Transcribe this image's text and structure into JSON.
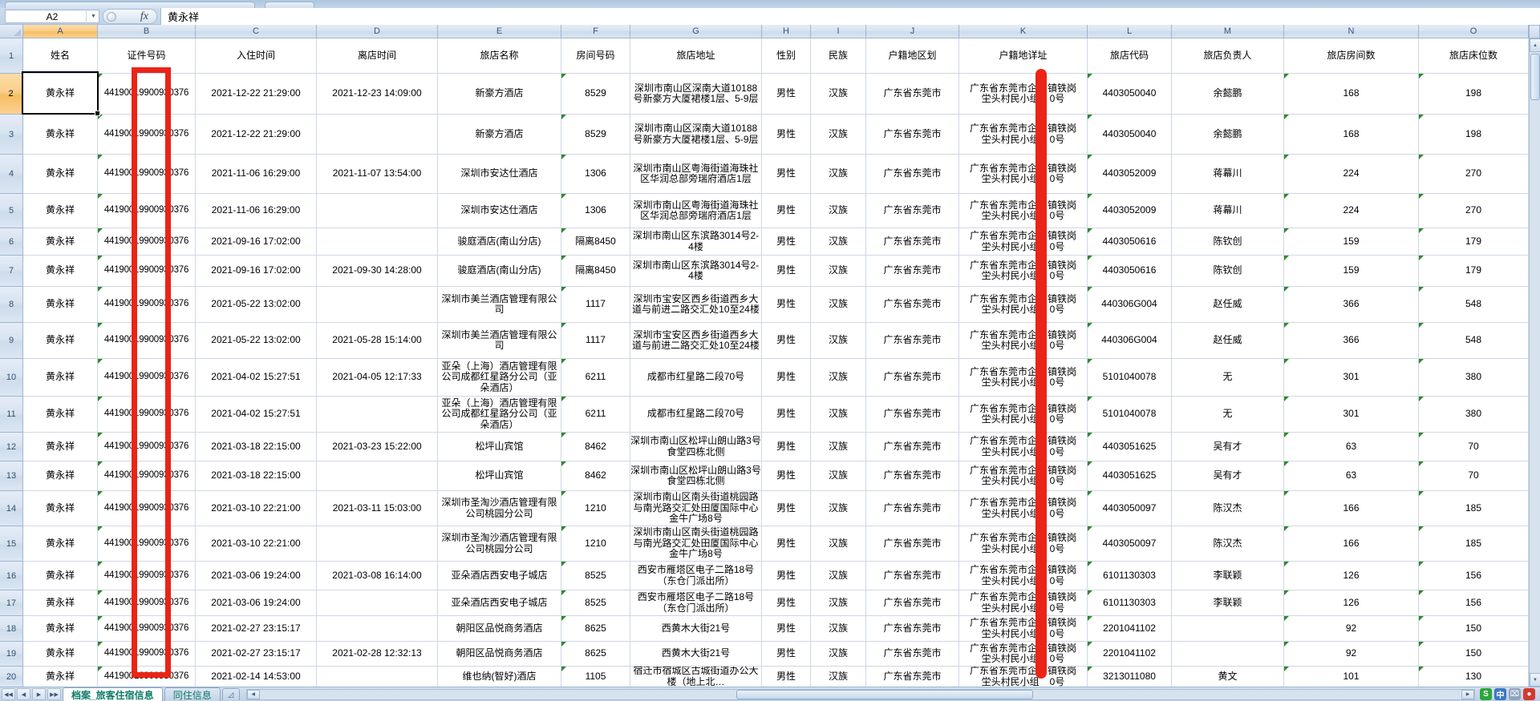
{
  "formula_bar": {
    "cell_ref": "A2",
    "fx_label": "fx",
    "value": "黄永祥"
  },
  "columns": [
    {
      "letter": "A",
      "header": "姓名"
    },
    {
      "letter": "B",
      "header": "证件号码"
    },
    {
      "letter": "C",
      "header": "入住时间"
    },
    {
      "letter": "D",
      "header": "离店时间"
    },
    {
      "letter": "E",
      "header": "旅店名称"
    },
    {
      "letter": "F",
      "header": "房间号码"
    },
    {
      "letter": "G",
      "header": "旅店地址"
    },
    {
      "letter": "H",
      "header": "性别"
    },
    {
      "letter": "I",
      "header": "民族"
    },
    {
      "letter": "J",
      "header": "户籍地区划"
    },
    {
      "letter": "K",
      "header": "户籍地详址"
    },
    {
      "letter": "L",
      "header": "旅店代码"
    },
    {
      "letter": "M",
      "header": "旅店负责人"
    },
    {
      "letter": "N",
      "header": "旅店房间数"
    },
    {
      "letter": "O",
      "header": "旅店床位数"
    }
  ],
  "person": {
    "name": "黄永祥",
    "id": "44190019900930376",
    "gender": "男性",
    "ethnic": "汉族",
    "reg_area": "广东省东莞市",
    "reg_addr_l1a": "广东省东莞市企",
    "reg_addr_l1b": "镇铁岗",
    "reg_addr_l2a": "坣头村民小组",
    "reg_addr_l2b": "0号"
  },
  "rows": [
    {
      "n": "2",
      "in": "2021-12-22 21:29:00",
      "out": "2021-12-23 14:09:00",
      "hotel": "新豪方酒店",
      "room": "8529",
      "addr": "深圳市南山区深南大道10188号新豪方大厦裙楼1层、5-9层",
      "code": "4403050040",
      "mgr": "余懿鹏",
      "rooms": "168",
      "beds": "198"
    },
    {
      "n": "3",
      "in": "2021-12-22 21:29:00",
      "out": "",
      "hotel": "新豪方酒店",
      "room": "8529",
      "addr": "深圳市南山区深南大道10188号新豪方大厦裙楼1层、5-9层",
      "code": "4403050040",
      "mgr": "余懿鹏",
      "rooms": "168",
      "beds": "198"
    },
    {
      "n": "4",
      "in": "2021-11-06 16:29:00",
      "out": "2021-11-07 13:54:00",
      "hotel": "深圳市安达仕酒店",
      "room": "1306",
      "addr": "深圳市南山区粤海街道海珠社区华润总部旁瑞府酒店1层",
      "code": "4403052009",
      "mgr": "蒋幕川",
      "rooms": "224",
      "beds": "270"
    },
    {
      "n": "5",
      "in": "2021-11-06 16:29:00",
      "out": "",
      "hotel": "深圳市安达仕酒店",
      "room": "1306",
      "addr": "深圳市南山区粤海街道海珠社区华润总部旁瑞府酒店1层",
      "code": "4403052009",
      "mgr": "蒋幕川",
      "rooms": "224",
      "beds": "270"
    },
    {
      "n": "6",
      "in": "2021-09-16 17:02:00",
      "out": "",
      "hotel": "骏庭酒店(南山分店)",
      "room": "隔离8450",
      "addr": "深圳市南山区东滨路3014号2-4楼",
      "code": "4403050616",
      "mgr": "陈钦创",
      "rooms": "159",
      "beds": "179"
    },
    {
      "n": "7",
      "in": "2021-09-16 17:02:00",
      "out": "2021-09-30 14:28:00",
      "hotel": "骏庭酒店(南山分店)",
      "room": "隔离8450",
      "addr": "深圳市南山区东滨路3014号2-4楼",
      "code": "4403050616",
      "mgr": "陈钦创",
      "rooms": "159",
      "beds": "179"
    },
    {
      "n": "8",
      "in": "2021-05-22 13:02:00",
      "out": "",
      "hotel": "深圳市美兰酒店管理有限公司",
      "room": "1117",
      "addr": "深圳市宝安区西乡街道西乡大道与前进二路交汇处10至24楼",
      "code": "440306G004",
      "mgr": "赵任威",
      "rooms": "366",
      "beds": "548"
    },
    {
      "n": "9",
      "in": "2021-05-22 13:02:00",
      "out": "2021-05-28 15:14:00",
      "hotel": "深圳市美兰酒店管理有限公司",
      "room": "1117",
      "addr": "深圳市宝安区西乡街道西乡大道与前进二路交汇处10至24楼",
      "code": "440306G004",
      "mgr": "赵任威",
      "rooms": "366",
      "beds": "548"
    },
    {
      "n": "10",
      "in": "2021-04-02 15:27:51",
      "out": "2021-04-05 12:17:33",
      "hotel": "亚朵（上海）酒店管理有限公司成都红星路分公司（亚朵酒店）",
      "room": "6211",
      "addr": "成都市红星路二段70号",
      "code": "5101040078",
      "mgr": "无",
      "rooms": "301",
      "beds": "380"
    },
    {
      "n": "11",
      "in": "2021-04-02 15:27:51",
      "out": "",
      "hotel": "亚朵（上海）酒店管理有限公司成都红星路分公司（亚朵酒店）",
      "room": "6211",
      "addr": "成都市红星路二段70号",
      "code": "5101040078",
      "mgr": "无",
      "rooms": "301",
      "beds": "380"
    },
    {
      "n": "12",
      "in": "2021-03-18 22:15:00",
      "out": "2021-03-23 15:22:00",
      "hotel": "松坪山宾馆",
      "room": "8462",
      "addr": "深圳市南山区松坪山朗山路3号食堂四栋北侧",
      "code": "4403051625",
      "mgr": "吴有才",
      "rooms": "63",
      "beds": "70"
    },
    {
      "n": "13",
      "in": "2021-03-18 22:15:00",
      "out": "",
      "hotel": "松坪山宾馆",
      "room": "8462",
      "addr": "深圳市南山区松坪山朗山路3号食堂四栋北侧",
      "code": "4403051625",
      "mgr": "吴有才",
      "rooms": "63",
      "beds": "70"
    },
    {
      "n": "14",
      "in": "2021-03-10 22:21:00",
      "out": "2021-03-11 15:03:00",
      "hotel": "深圳市圣淘沙酒店管理有限公司桃园分公司",
      "room": "1210",
      "addr": "深圳市南山区南头街道桃园路与南光路交汇处田厦国际中心金牛广场8号",
      "code": "4403050097",
      "mgr": "陈汉杰",
      "rooms": "166",
      "beds": "185"
    },
    {
      "n": "15",
      "in": "2021-03-10 22:21:00",
      "out": "",
      "hotel": "深圳市圣淘沙酒店管理有限公司桃园分公司",
      "room": "1210",
      "addr": "深圳市南山区南头街道桃园路与南光路交汇处田厦国际中心金牛广场8号",
      "code": "4403050097",
      "mgr": "陈汉杰",
      "rooms": "166",
      "beds": "185"
    },
    {
      "n": "16",
      "in": "2021-03-06 19:24:00",
      "out": "2021-03-08 16:14:00",
      "hotel": "亚朵酒店西安电子城店",
      "room": "8525",
      "addr": "西安市雁塔区电子二路18号（东仓门派出所）",
      "code": "6101130303",
      "mgr": "李联颖",
      "rooms": "126",
      "beds": "156"
    },
    {
      "n": "17",
      "in": "2021-03-06 19:24:00",
      "out": "",
      "hotel": "亚朵酒店西安电子城店",
      "room": "8525",
      "addr": "西安市雁塔区电子二路18号（东仓门派出所）",
      "code": "6101130303",
      "mgr": "李联颖",
      "rooms": "126",
      "beds": "156"
    },
    {
      "n": "18",
      "in": "2021-02-27 23:15:17",
      "out": "",
      "hotel": "朝阳区品悦商务酒店",
      "room": "8625",
      "addr": "西黄木大街21号",
      "code": "2201041102",
      "mgr": "",
      "rooms": "92",
      "beds": "150"
    },
    {
      "n": "19",
      "in": "2021-02-27 23:15:17",
      "out": "2021-02-28 12:32:13",
      "hotel": "朝阳区品悦商务酒店",
      "room": "8625",
      "addr": "西黄木大街21号",
      "code": "2201041102",
      "mgr": "",
      "rooms": "92",
      "beds": "150"
    },
    {
      "n": "20",
      "in": "2021-02-14 14:53:00",
      "out": "",
      "hotel": "维也纳(智好)酒店",
      "room": "1105",
      "addr": "宿迁市宿城区古城街道办公大楼（地上北…",
      "code": "3213011080",
      "mgr": "黄文",
      "rooms": "101",
      "beds": "130"
    }
  ],
  "header_row_label": "1",
  "sheet_tabs": {
    "tabs": [
      {
        "label": "档案_旅客住宿信息",
        "active": true
      },
      {
        "label": "同住信息",
        "active": false
      }
    ]
  },
  "tray": {
    "sogou_label": "S",
    "lang_label": "中"
  }
}
